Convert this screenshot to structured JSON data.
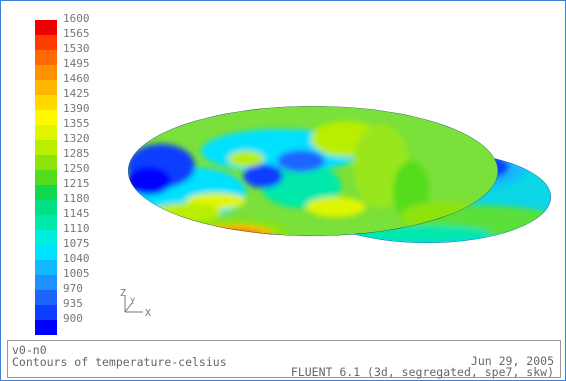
{
  "legend": {
    "colors": [
      "#0000ff",
      "#0d3dff",
      "#1a66ff",
      "#1f90ff",
      "#13b9ff",
      "#00e0ff",
      "#00eedd",
      "#00e8aa",
      "#00e086",
      "#11d84d",
      "#55dc1c",
      "#8ee30a",
      "#b9ee00",
      "#e0f500",
      "#fff800",
      "#ffd800",
      "#ffb600",
      "#ff9000",
      "#ff6a00",
      "#ff3c00",
      "#ee0000"
    ],
    "ticks": [
      "1600",
      "1565",
      "1530",
      "1495",
      "1460",
      "1425",
      "1390",
      "1355",
      "1320",
      "1285",
      "1250",
      "1215",
      "1180",
      "1145",
      "1110",
      "1075",
      "1040",
      "1005",
      "970",
      "935",
      "900"
    ]
  },
  "axes": {
    "x": "X",
    "y": "Y",
    "z": "Z"
  },
  "info": {
    "id_label": "v0-n0",
    "title": "Contours of temperature-celsius",
    "date": "Jun 29, 2005",
    "solver": "FLUENT 6.1 (3d, segregated, spe7, skw)"
  }
}
